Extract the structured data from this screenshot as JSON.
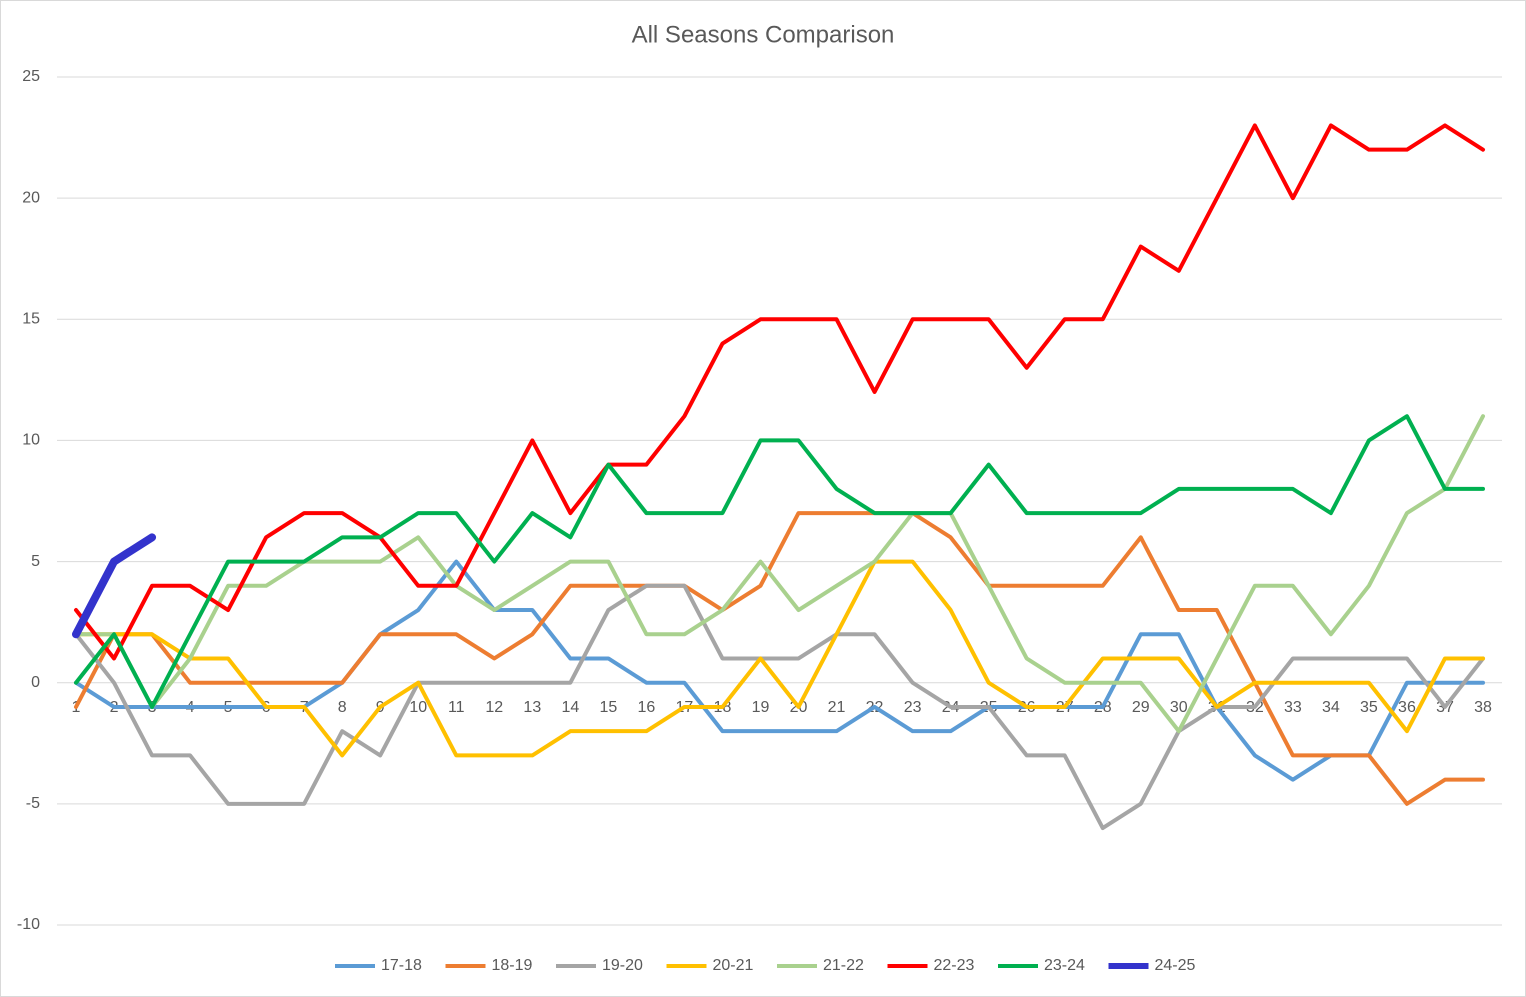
{
  "chart_data": {
    "type": "line",
    "title": "All Seasons Comparison",
    "categories": [
      1,
      2,
      3,
      4,
      5,
      6,
      7,
      8,
      9,
      10,
      11,
      12,
      13,
      14,
      15,
      16,
      17,
      18,
      19,
      20,
      21,
      22,
      23,
      24,
      25,
      26,
      27,
      28,
      29,
      30,
      31,
      32,
      33,
      34,
      35,
      36,
      37,
      38
    ],
    "ylim": [
      -10,
      25
    ],
    "yticks": [
      -10,
      -5,
      0,
      5,
      10,
      15,
      20,
      25
    ],
    "grid": true,
    "legend": "bottom",
    "series": [
      {
        "name": "17-18",
        "color": "#5b9bd5",
        "values": [
          0,
          -1,
          -1,
          -1,
          -1,
          -1,
          -1,
          0,
          2,
          3,
          5,
          3,
          3,
          1,
          1,
          0,
          0,
          -2,
          -2,
          -2,
          -2,
          -1,
          -2,
          -2,
          -1,
          -1,
          -1,
          -1,
          2,
          2,
          -1,
          -3,
          -4,
          -3,
          -3,
          0,
          0,
          0
        ]
      },
      {
        "name": "18-19",
        "color": "#ed7d31",
        "values": [
          -1,
          2,
          2,
          0,
          0,
          0,
          0,
          0,
          2,
          2,
          2,
          1,
          2,
          4,
          4,
          4,
          4,
          3,
          4,
          7,
          7,
          7,
          7,
          6,
          4,
          4,
          4,
          4,
          6,
          3,
          3,
          0,
          -3,
          -3,
          -3,
          -5,
          -4,
          -4
        ]
      },
      {
        "name": "19-20",
        "color": "#a5a5a5",
        "values": [
          2,
          0,
          -3,
          -3,
          -5,
          -5,
          -5,
          -2,
          -3,
          0,
          0,
          0,
          0,
          0,
          3,
          4,
          4,
          1,
          1,
          1,
          2,
          2,
          0,
          -1,
          -1,
          -3,
          -3,
          -6,
          -5,
          -2,
          -1,
          -1,
          1,
          1,
          1,
          1,
          -1,
          1
        ]
      },
      {
        "name": "20-21",
        "color": "#ffc000",
        "values": [
          2,
          2,
          2,
          1,
          1,
          -1,
          -1,
          -3,
          -1,
          0,
          -3,
          -3,
          -3,
          -2,
          -2,
          -2,
          -1,
          -1,
          1,
          -1,
          2,
          5,
          5,
          3,
          0,
          -1,
          -1,
          1,
          1,
          1,
          -1,
          0,
          0,
          0,
          0,
          -2,
          1,
          1
        ]
      },
      {
        "name": "21-22",
        "color": "#a9d18e",
        "values": [
          2,
          2,
          -1,
          1,
          4,
          4,
          5,
          5,
          5,
          6,
          4,
          3,
          4,
          5,
          5,
          2,
          2,
          3,
          5,
          3,
          4,
          5,
          7,
          7,
          4,
          1,
          0,
          0,
          0,
          -2,
          1,
          4,
          4,
          2,
          4,
          7,
          8,
          11
        ]
      },
      {
        "name": "22-23",
        "color": "#ff0000",
        "values": [
          3,
          1,
          4,
          4,
          3,
          6,
          7,
          7,
          6,
          4,
          4,
          7,
          10,
          7,
          9,
          9,
          11,
          14,
          15,
          15,
          15,
          12,
          15,
          15,
          15,
          13,
          15,
          15,
          18,
          17,
          20,
          23,
          20,
          23,
          22,
          22,
          23,
          22
        ]
      },
      {
        "name": "23-24",
        "color": "#00b050",
        "values": [
          0,
          2,
          -1,
          2,
          5,
          5,
          5,
          6,
          6,
          7,
          7,
          5,
          7,
          6,
          9,
          7,
          7,
          7,
          10,
          10,
          8,
          7,
          7,
          7,
          9,
          7,
          7,
          7,
          7,
          8,
          8,
          8,
          8,
          7,
          10,
          11,
          8,
          8
        ]
      },
      {
        "name": "24-25",
        "color": "#3333cc",
        "values": [
          2,
          5,
          6,
          null,
          null,
          null,
          null,
          null,
          null,
          null,
          null,
          null,
          null,
          null,
          null,
          null,
          null,
          null,
          null,
          null,
          null,
          null,
          null,
          null,
          null,
          null,
          null,
          null,
          null,
          null,
          null,
          null,
          null,
          null,
          null,
          null,
          null,
          null
        ]
      }
    ]
  }
}
